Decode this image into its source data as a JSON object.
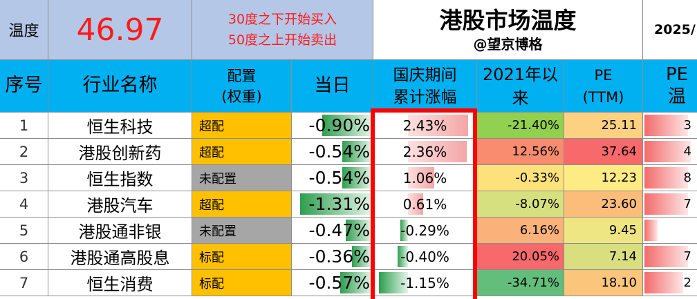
{
  "top": {
    "temp_label": "温度",
    "temp_value": "46.97",
    "rule_line1": "30度之下开始买入",
    "rule_line2": "50度之上开始卖出",
    "title": "港股市场温度",
    "subtitle": "@望京博格",
    "date_partial": "2025/"
  },
  "headers": {
    "idx": "序号",
    "name": "行业名称",
    "alloc1": "配置",
    "alloc2": "(权重)",
    "day": "当日",
    "holiday1": "国庆期间",
    "holiday2": "累计涨幅",
    "since1": "2021年以",
    "since2": "来",
    "pe1": "PE",
    "pe2": "(TTM)",
    "petemp": "PE温"
  },
  "colors": {
    "overweight": "#ffc000",
    "underweight": "#a6a6a6",
    "neutral": "#ffc000",
    "positive_bar": "#f4a6a6",
    "negative_bar": "#2e9e4f",
    "header_bg": "#00b0f0",
    "highlight_border": "#ff0000"
  },
  "rows": [
    {
      "idx": "1",
      "name": "恒生科技",
      "alloc": "超配",
      "alloc_type": "overweight",
      "day": "-0.90%",
      "day_v": -0.9,
      "holiday": "2.43%",
      "holiday_v": 2.43,
      "since": "-21.40%",
      "since_color": "#92d050",
      "pe": "25.11",
      "pe_color": "#fdd182",
      "pt": "3",
      "pt_v": 0.85
    },
    {
      "idx": "2",
      "name": "港股创新药",
      "alloc": "超配",
      "alloc_type": "overweight",
      "day": "-0.54%",
      "day_v": -0.54,
      "holiday": "2.36%",
      "holiday_v": 2.36,
      "since": "12.56%",
      "since_color": "#f98b6e",
      "pe": "37.64",
      "pe_color": "#f8696b",
      "pt": "4",
      "pt_v": 0.9
    },
    {
      "idx": "3",
      "name": "恒生指数",
      "alloc": "未配置",
      "alloc_type": "underweight",
      "day": "-0.54%",
      "day_v": -0.54,
      "holiday": "1.06%",
      "holiday_v": 1.06,
      "since": "-0.33%",
      "since_color": "#fde27b",
      "pe": "12.23",
      "pe_color": "#ffeb84",
      "pt": "8",
      "pt_v": 0.85
    },
    {
      "idx": "4",
      "name": "港股汽车",
      "alloc": "超配",
      "alloc_type": "overweight",
      "day": "-1.31%",
      "day_v": -1.31,
      "holiday": "0.61%",
      "holiday_v": 0.61,
      "since": "-8.07%",
      "since_color": "#d6e07e",
      "pe": "23.60",
      "pe_color": "#fcbd7b",
      "pt": "7",
      "pt_v": 0.85
    },
    {
      "idx": "5",
      "name": "港股通非银",
      "alloc": "未配置",
      "alloc_type": "underweight",
      "day": "-0.47%",
      "day_v": -0.47,
      "holiday": "-0.29%",
      "holiday_v": -0.29,
      "since": "6.16%",
      "since_color": "#fbb27a",
      "pe": "9.45",
      "pe_color": "#eee583",
      "pt": "",
      "pt_v": 0.25
    },
    {
      "idx": "6",
      "name": "港股通高股息",
      "alloc": "标配",
      "alloc_type": "neutral",
      "day": "-0.36%",
      "day_v": -0.36,
      "holiday": "-0.40%",
      "holiday_v": -0.4,
      "since": "20.05%",
      "since_color": "#f8696b",
      "pe": "7.14",
      "pe_color": "#d9de81",
      "pt": "7",
      "pt_v": 0.85
    },
    {
      "idx": "7",
      "name": "恒生消费",
      "alloc": "标配",
      "alloc_type": "neutral",
      "day": "-0.57%",
      "day_v": -0.57,
      "holiday": "-1.15%",
      "holiday_v": -1.15,
      "since": "-34.71%",
      "since_color": "#63be7b",
      "pe": "18.10",
      "pe_color": "#fcc57c",
      "pt": "2",
      "pt_v": 0.75
    }
  ]
}
